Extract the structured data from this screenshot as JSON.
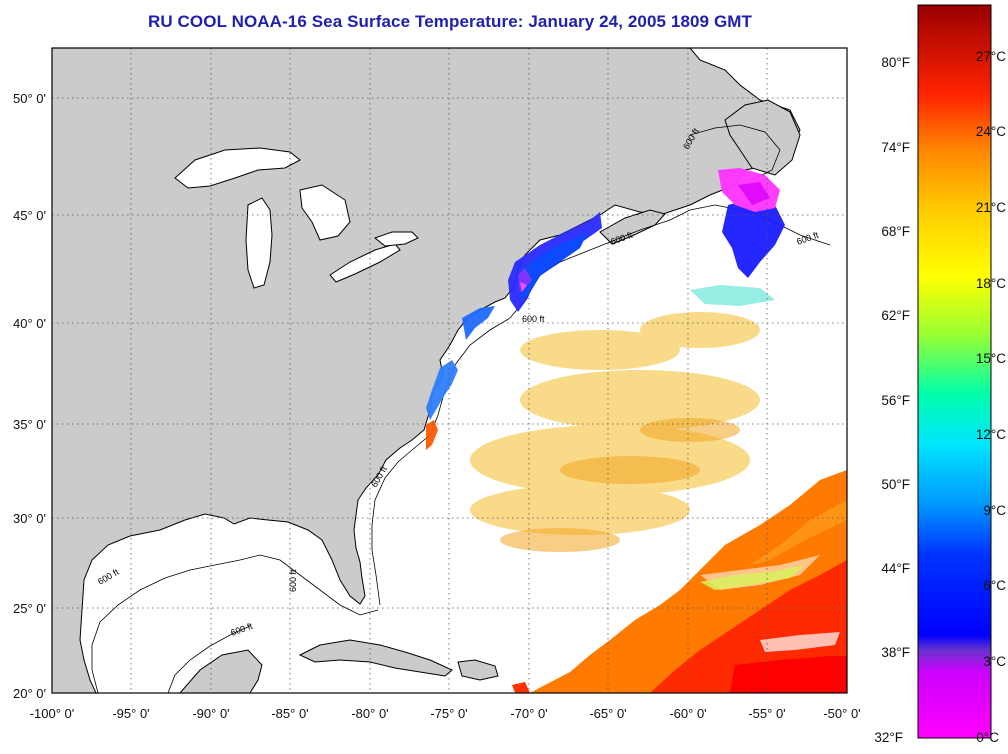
{
  "title": "RU COOL  NOAA-16  Sea Surface Temperature:  January 24, 2005 1809 GMT",
  "map": {
    "lat_ticks": [
      "50° 0'",
      "45° 0'",
      "40° 0'",
      "35° 0'",
      "30° 0'",
      "25° 0'",
      "20° 0'"
    ],
    "lon_ticks": [
      "-100° 0'",
      "-95° 0'",
      "-90° 0'",
      "-85° 0'",
      "-80° 0'",
      "-75° 0'",
      "-70° 0'",
      "-65° 0'",
      "-60° 0'",
      "-55° 0'",
      "-50° 0'"
    ],
    "contour_label": "600 ft",
    "land_color": "#cbcbcb",
    "ocean_color": "#ffffff"
  },
  "colorbar": {
    "fahrenheit": [
      "80°F",
      "74°F",
      "68°F",
      "62°F",
      "56°F",
      "50°F",
      "44°F",
      "38°F",
      "32°F"
    ],
    "celsius": [
      "27°C",
      "24°C",
      "21°C",
      "18°C",
      "15°C",
      "12°C",
      "9°C",
      "6°C",
      "3°C",
      "0°C"
    ],
    "colors": [
      "#ff00ff",
      "#b300ff",
      "#0000ff",
      "#0077ff",
      "#00e5ff",
      "#00ff7a",
      "#b3ff00",
      "#ffff00",
      "#ff9900",
      "#ff2200",
      "#a00000"
    ]
  }
}
